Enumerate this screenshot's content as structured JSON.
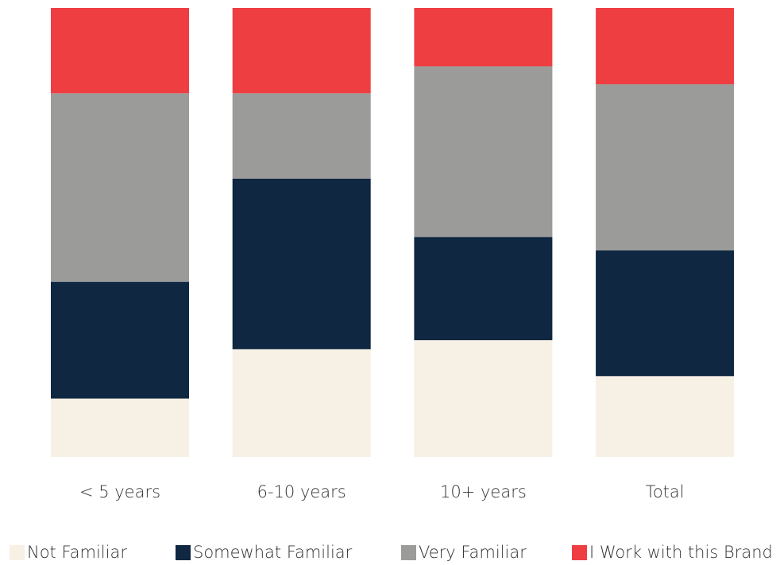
{
  "chart_data": {
    "type": "stacked_bar",
    "categories": [
      "< 5 years",
      "6-10 years",
      "10+ years",
      "Total"
    ],
    "series": [
      {
        "name": "Not Familiar",
        "color": "#f7f0e4",
        "values": [
          13,
          24,
          26,
          18
        ]
      },
      {
        "name": "Somewhat Familiar",
        "color": "#0f2740",
        "values": [
          26,
          38,
          23,
          28
        ]
      },
      {
        "name": "Very Familiar",
        "color": "#9b9b99",
        "values": [
          42,
          19,
          38,
          37
        ]
      },
      {
        "name": "I Work with this Brand",
        "color": "#ef3e42",
        "values": [
          19,
          19,
          13,
          17
        ]
      }
    ],
    "ylim": [
      0,
      100
    ],
    "legend": "bottom"
  }
}
